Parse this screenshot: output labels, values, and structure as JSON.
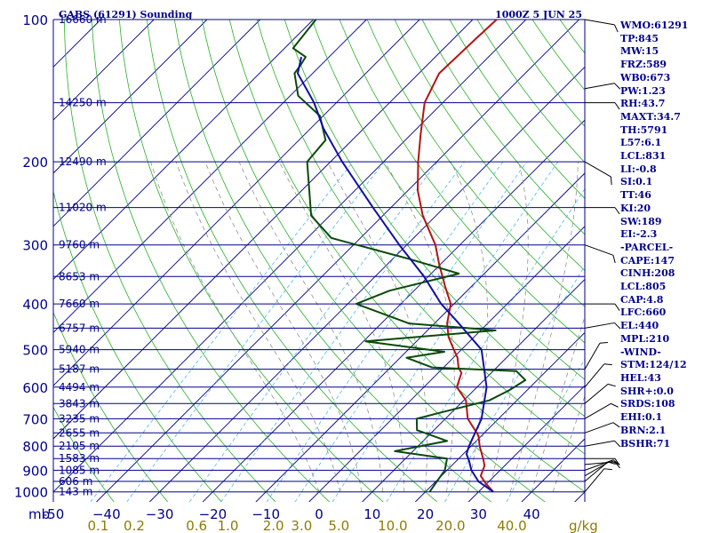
{
  "chart_data": {
    "type": "line",
    "title": "GABS (61291) Sounding",
    "timestamp": "1000Z  5 JUN 25",
    "pressure_axis_unit": "mb",
    "mixing_ratio_unit": "g/kg",
    "pressure_ticks": [
      100,
      200,
      300,
      400,
      500,
      600,
      700,
      800,
      900,
      1000
    ],
    "height_levels": [
      {
        "p": 100,
        "label": "16660 m"
      },
      {
        "p": 150,
        "label": "14250 m"
      },
      {
        "p": 200,
        "label": "12490 m"
      },
      {
        "p": 250,
        "label": "11020 m"
      },
      {
        "p": 300,
        "label": "9760 m"
      },
      {
        "p": 350,
        "label": "8653 m"
      },
      {
        "p": 400,
        "label": "7660 m"
      },
      {
        "p": 450,
        "label": "6757 m"
      },
      {
        "p": 500,
        "label": "5940 m"
      },
      {
        "p": 550,
        "label": "5187 m"
      },
      {
        "p": 600,
        "label": "4494 m"
      },
      {
        "p": 650,
        "label": "3843 m"
      },
      {
        "p": 700,
        "label": "3235 m"
      },
      {
        "p": 750,
        "label": "2655 m"
      },
      {
        "p": 800,
        "label": "2105 m"
      },
      {
        "p": 850,
        "label": "1583 m"
      },
      {
        "p": 900,
        "label": "1085 m"
      },
      {
        "p": 950,
        "label": "606 m"
      },
      {
        "p": 1000,
        "label": "143 m"
      }
    ],
    "temperature_ticks": [
      -50,
      -40,
      -30,
      -20,
      -10,
      0,
      10,
      20,
      30,
      40
    ],
    "temperature_tick_labels": [
      "-50",
      "−40",
      "−30",
      "−20",
      "−10",
      "0",
      "10",
      "20",
      "30",
      "40"
    ],
    "mixing_ratio_ticks": [
      {
        "value": 0.1,
        "label": "0.1"
      },
      {
        "value": 0.2,
        "label": "0.2"
      },
      {
        "value": 0.6,
        "label": "0.6"
      },
      {
        "value": 1.0,
        "label": "1.0"
      },
      {
        "value": 2.0,
        "label": "2.0"
      },
      {
        "value": 3.0,
        "label": "3.0"
      },
      {
        "value": 5.0,
        "label": "5.0"
      },
      {
        "value": 10.0,
        "label": "10.0"
      },
      {
        "value": 20.0,
        "label": "20.0"
      },
      {
        "value": 40.0,
        "label": "40.0"
      }
    ],
    "temp_range_at_1000mb": [
      -50,
      50
    ],
    "pressure_range": [
      100,
      1050
    ],
    "log_pressure": true,
    "grid": true,
    "series": [
      {
        "color": "#b41414",
        "points": [
          [
            1000,
            32.8
          ],
          [
            960,
            29.8
          ],
          [
            925,
            27.4
          ],
          [
            880,
            26.2
          ],
          [
            850,
            24.6
          ],
          [
            800,
            21.6
          ],
          [
            760,
            19.4
          ],
          [
            700,
            14.2
          ],
          [
            640,
            10.4
          ],
          [
            600,
            6.2
          ],
          [
            560,
            4.4
          ],
          [
            545,
            2.8
          ],
          [
            520,
            0.8
          ],
          [
            500,
            -1.4
          ],
          [
            470,
            -4.8
          ],
          [
            440,
            -7.6
          ],
          [
            400,
            -10.6
          ],
          [
            370,
            -14.6
          ],
          [
            330,
            -20.2
          ],
          [
            300,
            -24.6
          ],
          [
            260,
            -32.5
          ],
          [
            230,
            -38.2
          ],
          [
            200,
            -43.5
          ],
          [
            175,
            -48.2
          ],
          [
            150,
            -53.4
          ],
          [
            130,
            -56.2
          ],
          [
            110,
            -55.8
          ],
          [
            100,
            -55.5
          ]
        ]
      },
      {
        "color": "#0a4a0a",
        "points": [
          [
            1000,
            20.8
          ],
          [
            950,
            20.2
          ],
          [
            900,
            19.6
          ],
          [
            850,
            17.8
          ],
          [
            820,
            6.6
          ],
          [
            780,
            14.5
          ],
          [
            740,
            6.8
          ],
          [
            700,
            4.6
          ],
          [
            680,
            7.8
          ],
          [
            640,
            14.8
          ],
          [
            610,
            16.6
          ],
          [
            580,
            17.8
          ],
          [
            555,
            14.4
          ],
          [
            545,
            -2.2
          ],
          [
            520,
            -8.8
          ],
          [
            505,
            -2.8
          ],
          [
            480,
            -19.6
          ],
          [
            455,
            2.8
          ],
          [
            440,
            -14.8
          ],
          [
            400,
            -28.4
          ],
          [
            375,
            -24.6
          ],
          [
            345,
            -14.8
          ],
          [
            320,
            -27.6
          ],
          [
            290,
            -45.5
          ],
          [
            260,
            -53.5
          ],
          [
            230,
            -58.6
          ],
          [
            200,
            -64.4
          ],
          [
            180,
            -65.0
          ],
          [
            160,
            -70.6
          ],
          [
            145,
            -78.5
          ],
          [
            130,
            -83.4
          ],
          [
            125,
            -83.8
          ],
          [
            120,
            -84.4
          ],
          [
            115,
            -88.4
          ],
          [
            100,
            -89.5
          ]
        ]
      },
      {
        "color": "#1010a0",
        "points": [
          [
            1000,
            32.8
          ],
          [
            950,
            28.0
          ],
          [
            900,
            24.6
          ],
          [
            860,
            22.4
          ],
          [
            831,
            20.6
          ],
          [
            800,
            19.6
          ],
          [
            700,
            16.8
          ],
          [
            600,
            11.8
          ],
          [
            500,
            3.8
          ],
          [
            440,
            -5.4
          ],
          [
            400,
            -12.4
          ],
          [
            350,
            -20.8
          ],
          [
            300,
            -31.4
          ],
          [
            250,
            -43.4
          ],
          [
            200,
            -57.8
          ],
          [
            170,
            -67.6
          ],
          [
            150,
            -74.2
          ],
          [
            130,
            -82.8
          ],
          [
            120,
            -85.2
          ]
        ]
      }
    ],
    "wind_barbs": [
      {
        "p": 100,
        "dir": 280
      },
      {
        "p": 140,
        "dir": 260
      },
      {
        "p": 150,
        "dir": 270
      },
      {
        "p": 200,
        "dir": 300
      },
      {
        "p": 250,
        "dir": 270
      },
      {
        "p": 300,
        "dir": 290
      },
      {
        "p": 400,
        "dir": 270
      },
      {
        "p": 450,
        "dir": 260
      },
      {
        "p": 550,
        "dir": 210
      },
      {
        "p": 600,
        "dir": 220
      },
      {
        "p": 650,
        "dir": 230
      },
      {
        "p": 700,
        "dir": 240
      },
      {
        "p": 750,
        "dir": 250
      },
      {
        "p": 800,
        "dir": 260
      },
      {
        "p": 850,
        "dir": 270
      },
      {
        "p": 875,
        "dir": 265
      },
      {
        "p": 900,
        "dir": 250
      },
      {
        "p": 925,
        "dir": 240
      },
      {
        "p": 950,
        "dir": 230
      },
      {
        "p": 1000,
        "dir": 220
      }
    ]
  },
  "stats": [
    "WMO:61291",
    "TP:845",
    "MW:15",
    "FRZ:589",
    "WB0:673",
    "PW:1.23",
    "RH:43.7",
    "MAXT:34.7",
    "TH:5791",
    "L57:6.1",
    "LCL:831",
    "LI:-0.8",
    "SI:0.1",
    "TT:46",
    "KI:20",
    "SW:189",
    "EI:-2.3",
    "-PARCEL-",
    "CAPE:147",
    "CINH:208",
    "LCL:805",
    "CAP:4.8",
    "LFC:660",
    "EL:440",
    "MPL:210",
    "-WIND-",
    "STM:124/12",
    "HEL:43",
    "SHR+:0.0",
    "SRDS:108",
    "EHI:0.1",
    "BRN:2.1",
    "BSHR:71"
  ],
  "colors": {
    "isobar": "#00008b",
    "isotherm": "#00008b",
    "dry_adiabat": "#27b027",
    "mixing_ratio": "#4db8e8",
    "moist_adiabat": "#909090",
    "temperature": "#b41414",
    "dewpoint": "#0a4a0a",
    "parcel": "#1010a0",
    "label_blue": "#00008b",
    "label_olive": "#8b7d00"
  }
}
